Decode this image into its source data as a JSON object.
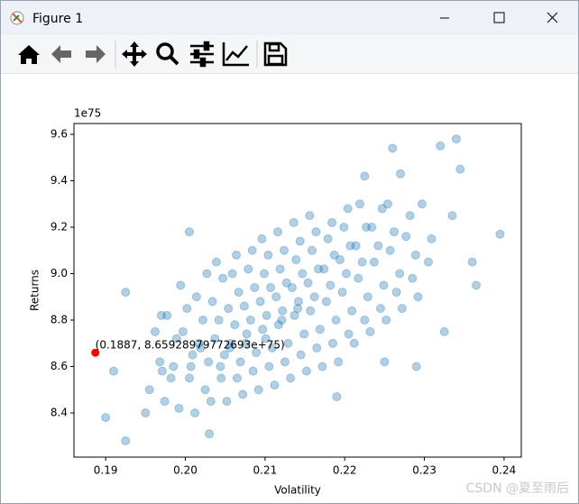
{
  "window": {
    "title": "Figure 1"
  },
  "chart_data": {
    "type": "scatter",
    "xlabel": "Volatility",
    "ylabel": "Returns",
    "y_offset_label": "1e75",
    "color": "#1f77b4",
    "alpha": 0.35,
    "xlim": [
      0.18602,
      0.24216
    ],
    "ylim": [
      8.2097,
      9.6466
    ],
    "xticks": [
      0.19,
      {
        "value": 0.2,
        "label": "0.20"
      },
      0.21,
      0.22,
      0.23,
      0.24
    ],
    "yticks": [
      8.4,
      8.6,
      8.8,
      {
        "value": 9,
        "label": "9.0"
      },
      9.2,
      9.4,
      9.6
    ],
    "grid": false,
    "x": [
      0.1955,
      0.1968,
      0.1962,
      0.1971,
      0.1974,
      0.1985,
      0.1989,
      0.1977,
      0.1982,
      0.1992,
      0.2005,
      0.2009,
      0.1997,
      0.2002,
      0.1994,
      0.2007,
      0.2012,
      0.2025,
      0.2029,
      0.2017,
      0.2022,
      0.2014,
      0.2027,
      0.2019,
      0.2032,
      0.2045,
      0.2049,
      0.2037,
      0.2042,
      0.2034,
      0.2047,
      0.2039,
      0.2044,
      0.2052,
      0.2065,
      0.2069,
      0.2057,
      0.2062,
      0.2054,
      0.2067,
      0.2059,
      0.2064,
      0.2056,
      0.2072,
      0.2085,
      0.2089,
      0.2077,
      0.2082,
      0.2074,
      0.2087,
      0.2079,
      0.2084,
      0.2076,
      0.2092,
      0.2105,
      0.2109,
      0.2097,
      0.2102,
      0.2094,
      0.2107,
      0.2099,
      0.2104,
      0.2096,
      0.2101,
      0.2112,
      0.2125,
      0.2129,
      0.2117,
      0.2122,
      0.2114,
      0.2127,
      0.2119,
      0.2124,
      0.2116,
      0.2121,
      0.2132,
      0.2145,
      0.2149,
      0.2137,
      0.2142,
      0.2134,
      0.2147,
      0.2139,
      0.2144,
      0.2136,
      0.2141,
      0.2152,
      0.2165,
      0.2169,
      0.2157,
      0.2162,
      0.2154,
      0.2167,
      0.2159,
      0.2164,
      0.2156,
      0.2172,
      0.2185,
      0.2189,
      0.2177,
      0.2182,
      0.2174,
      0.2187,
      0.2179,
      0.2184,
      0.2192,
      0.2205,
      0.2209,
      0.2197,
      0.2202,
      0.2194,
      0.2207,
      0.2199,
      0.2204,
      0.2212,
      0.2225,
      0.2229,
      0.2217,
      0.2222,
      0.2214,
      0.2227,
      0.2219,
      0.2232,
      0.2245,
      0.2249,
      0.2237,
      0.2242,
      0.2234,
      0.2247,
      0.2252,
      0.2265,
      0.2269,
      0.2257,
      0.2262,
      0.2254,
      0.2272,
      0.2285,
      0.2289,
      0.2277,
      0.2282,
      0.2292,
      0.2305,
      0.2309,
      0.2297,
      0.19,
      0.1925,
      0.191,
      0.1925,
      0.195,
      0.197,
      0.232,
      0.234,
      0.2395,
      0.2365,
      0.2345,
      0.226,
      0.2225,
      0.203,
      0.219,
      0.2325,
      0.229,
      0.225,
      0.236,
      0.2335,
      0.2005,
      0.227
    ],
    "values": [
      8.5,
      8.62,
      8.75,
      8.58,
      8.45,
      8.6,
      8.72,
      8.82,
      8.55,
      8.42,
      8.55,
      8.65,
      8.75,
      8.85,
      8.95,
      8.6,
      8.4,
      8.5,
      8.62,
      8.7,
      8.8,
      8.9,
      9.0,
      8.68,
      8.45,
      8.55,
      8.65,
      8.72,
      8.8,
      8.88,
      8.98,
      9.05,
      8.6,
      8.45,
      8.55,
      8.62,
      8.7,
      8.78,
      8.85,
      8.92,
      9.0,
      9.08,
      8.68,
      8.48,
      8.58,
      8.66,
      8.74,
      8.8,
      8.86,
      8.94,
      9.02,
      9.1,
      8.7,
      8.5,
      8.6,
      8.68,
      8.76,
      8.82,
      8.88,
      8.94,
      9.0,
      9.08,
      9.15,
      8.72,
      8.52,
      8.62,
      8.7,
      8.78,
      8.84,
      8.9,
      8.96,
      9.02,
      9.1,
      9.18,
      8.8,
      8.55,
      8.65,
      8.74,
      8.82,
      8.88,
      8.94,
      9.0,
      9.06,
      9.14,
      9.22,
      8.85,
      8.58,
      8.68,
      8.76,
      8.84,
      8.9,
      8.96,
      9.02,
      9.1,
      9.18,
      9.25,
      8.6,
      8.7,
      8.8,
      8.88,
      8.95,
      9.02,
      9.08,
      9.15,
      9.22,
      8.62,
      8.74,
      8.84,
      8.92,
      9.0,
      9.06,
      9.12,
      9.2,
      9.28,
      8.7,
      8.8,
      8.9,
      8.98,
      9.05,
      9.12,
      9.2,
      9.3,
      8.75,
      8.85,
      8.95,
      9.05,
      9.12,
      9.2,
      9.28,
      8.8,
      8.92,
      9.0,
      9.1,
      9.18,
      9.3,
      8.85,
      8.98,
      9.08,
      9.16,
      9.25,
      8.9,
      9.05,
      9.15,
      9.3,
      8.38,
      8.28,
      8.58,
      8.92,
      8.4,
      8.82,
      9.55,
      9.58,
      9.17,
      8.95,
      9.45,
      9.54,
      9.42,
      8.31,
      8.47,
      8.75,
      8.6,
      8.62,
      9.05,
      9.25,
      9.18,
      9.43
    ],
    "highlight": {
      "x": 0.1887,
      "y": 8.65928979772693,
      "color": "#ff0000",
      "label": "(0.1887, 8.65928979772693e+75)"
    }
  },
  "watermark": "CSDN @夏至雨后"
}
